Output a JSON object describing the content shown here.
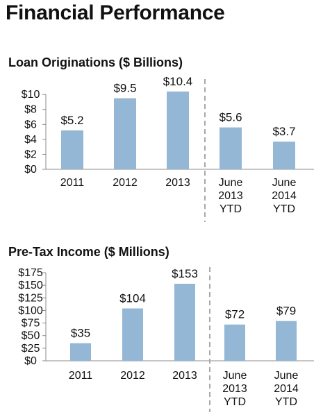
{
  "page": {
    "title": "Financial Performance"
  },
  "chart_data": [
    {
      "type": "bar",
      "title": "Loan Originations ($ Billions)",
      "categories": [
        "2011",
        "2012",
        "2013",
        "June 2013 YTD",
        "June 2014 YTD"
      ],
      "category_lines": [
        [
          "2011"
        ],
        [
          "2012"
        ],
        [
          "2013"
        ],
        [
          "June",
          "2013",
          "YTD"
        ],
        [
          "June",
          "2014",
          "YTD"
        ]
      ],
      "values": [
        5.2,
        9.5,
        10.4,
        5.6,
        3.7
      ],
      "data_labels": [
        "$5.2",
        "$9.5",
        "$10.4",
        "$5.6",
        "$3.7"
      ],
      "yticks": [
        0,
        2,
        4,
        6,
        8,
        10
      ],
      "ytick_labels": [
        "$0",
        "$2",
        "$4",
        "$6",
        "$8",
        "$10"
      ],
      "ylim": [
        0,
        11.5
      ],
      "separator_after_index": 2,
      "bar_color": "#94b7d6",
      "xlabel": "",
      "ylabel": "",
      "grid": false,
      "legend": "none"
    },
    {
      "type": "bar",
      "title": "Pre-Tax Income ($ Millions)",
      "categories": [
        "2011",
        "2012",
        "2013",
        "June 2013 YTD",
        "June 2014 YTD"
      ],
      "category_lines": [
        [
          "2011"
        ],
        [
          "2012"
        ],
        [
          "2013"
        ],
        [
          "June",
          "2013",
          "YTD"
        ],
        [
          "June",
          "2014",
          "YTD"
        ]
      ],
      "values": [
        35,
        104,
        153,
        72,
        79
      ],
      "data_labels": [
        "$35",
        "$104",
        "$153",
        "$72",
        "$79"
      ],
      "yticks": [
        0,
        25,
        50,
        75,
        100,
        125,
        150,
        175
      ],
      "ytick_labels": [
        "$0",
        "$25",
        "$50",
        "$75",
        "$100",
        "$125",
        "$150",
        "$175"
      ],
      "ylim": [
        0,
        175
      ],
      "separator_after_index": 2,
      "bar_color": "#94b7d6",
      "xlabel": "",
      "ylabel": "",
      "grid": false,
      "legend": "none"
    }
  ]
}
